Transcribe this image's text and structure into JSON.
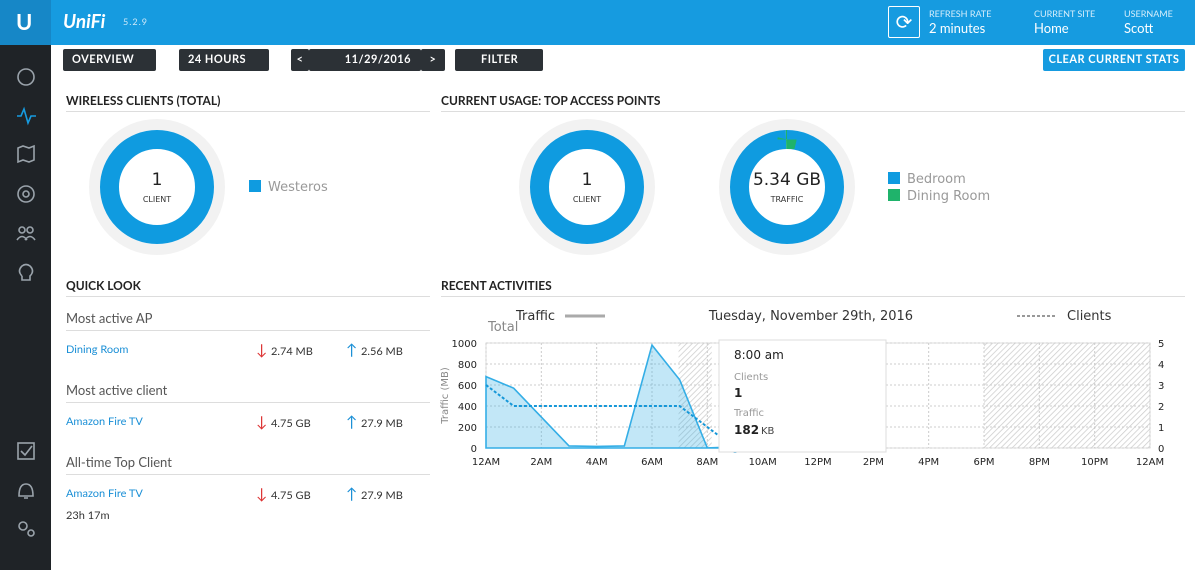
{
  "header": {
    "brand": "UniFi",
    "version": "5.2.9",
    "refresh_rate": {
      "label": "REFRESH RATE",
      "value": "2 minutes"
    },
    "current_site": {
      "label": "CURRENT SITE",
      "value": "Home"
    },
    "username": {
      "label": "USERNAME",
      "value": "Scott"
    }
  },
  "toolbar": {
    "overview": "OVERVIEW",
    "range": "24 HOURS",
    "prev": "<",
    "date": "11/29/2016",
    "next": ">",
    "filter": "FILTER",
    "clear": "CLEAR CURRENT STATS"
  },
  "wireless_clients": {
    "title": "WIRELESS CLIENTS (TOTAL)",
    "value": "1",
    "unit": "CLIENT",
    "legend": [
      {
        "name": "Westeros",
        "color": "#0f9be0"
      }
    ]
  },
  "top_aps": {
    "title": "CURRENT USAGE: TOP ACCESS POINTS",
    "clients": {
      "value": "1",
      "unit": "CLIENT"
    },
    "traffic": {
      "value": "5.34 GB",
      "unit": "TRAFFIC",
      "values": [
        99.5,
        0.5
      ]
    },
    "legend": [
      {
        "name": "Bedroom",
        "color": "#0f9be0"
      },
      {
        "name": "Dining Room",
        "color": "#1fb36b"
      }
    ]
  },
  "quick_look": {
    "title": "QUICK LOOK",
    "sections": [
      {
        "heading": "Most active AP",
        "name": "Dining Room",
        "down": "2.74 MB",
        "up": "2.56 MB"
      },
      {
        "heading": "Most active client",
        "name": "Amazon Fire TV",
        "down": "4.75 GB",
        "up": "27.9 MB"
      },
      {
        "heading": "All-time Top Client",
        "name": "Amazon Fire TV",
        "down": "4.75 GB",
        "up": "27.9 MB",
        "extra": "23h 17m"
      }
    ]
  },
  "recent_activities": {
    "title": "RECENT ACTIVITIES",
    "chart_data": {
      "type": "line",
      "title": "Tuesday, November 29th, 2016",
      "ylabel": "Traffic (MB)",
      "ylabel_top": "Total",
      "x": [
        0,
        1,
        3,
        4,
        5,
        6,
        7,
        8,
        9,
        10,
        11,
        12,
        13,
        14
      ],
      "series": [
        {
          "name": "Traffic",
          "color": "#34aee6",
          "values": [
            680,
            570,
            20,
            15,
            20,
            980,
            650,
            0.18,
            10,
            20,
            20,
            20,
            10,
            0
          ]
        },
        {
          "name": "Clients",
          "color": "#1597d8",
          "axis": "y2",
          "values": [
            3,
            2,
            2,
            2,
            2,
            2,
            2,
            1,
            0,
            1,
            2,
            2,
            1,
            0
          ]
        }
      ],
      "xlim": [
        0,
        24
      ],
      "xticks": [
        {
          "value": 0,
          "label": "12AM"
        },
        {
          "value": 2,
          "label": "2AM"
        },
        {
          "value": 4,
          "label": "4AM"
        },
        {
          "value": 6,
          "label": "6AM"
        },
        {
          "value": 8,
          "label": "8AM"
        },
        {
          "value": 10,
          "label": "10AM"
        },
        {
          "value": 12,
          "label": "12PM"
        },
        {
          "value": 14,
          "label": "2PM"
        },
        {
          "value": 16,
          "label": "4PM"
        },
        {
          "value": 18,
          "label": "6PM"
        },
        {
          "value": 20,
          "label": "8PM"
        },
        {
          "value": 22,
          "label": "10PM"
        },
        {
          "value": 24,
          "label": "12AM"
        }
      ],
      "ylim": [
        0,
        1000
      ],
      "yticks": [
        0,
        200,
        400,
        600,
        800,
        1000
      ],
      "y2lim": [
        0,
        5
      ],
      "y2ticks": [
        0,
        1,
        2,
        3,
        4,
        5
      ],
      "grid": true,
      "tooltip": {
        "time": "8:00 am",
        "clients_label": "Clients",
        "clients": "1",
        "traffic_label": "Traffic",
        "traffic": "182",
        "traffic_unit": "KB"
      }
    }
  }
}
